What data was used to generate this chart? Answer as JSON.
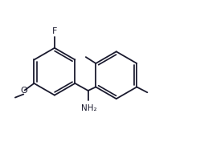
{
  "background": "#ffffff",
  "line_color": "#1a1a2e",
  "line_width": 1.3,
  "font_size": 7.5,
  "figsize": [
    2.49,
    1.92
  ],
  "dpi": 100,
  "xlim": [
    -0.5,
    10.5
  ],
  "ylim": [
    0.5,
    7.5
  ]
}
